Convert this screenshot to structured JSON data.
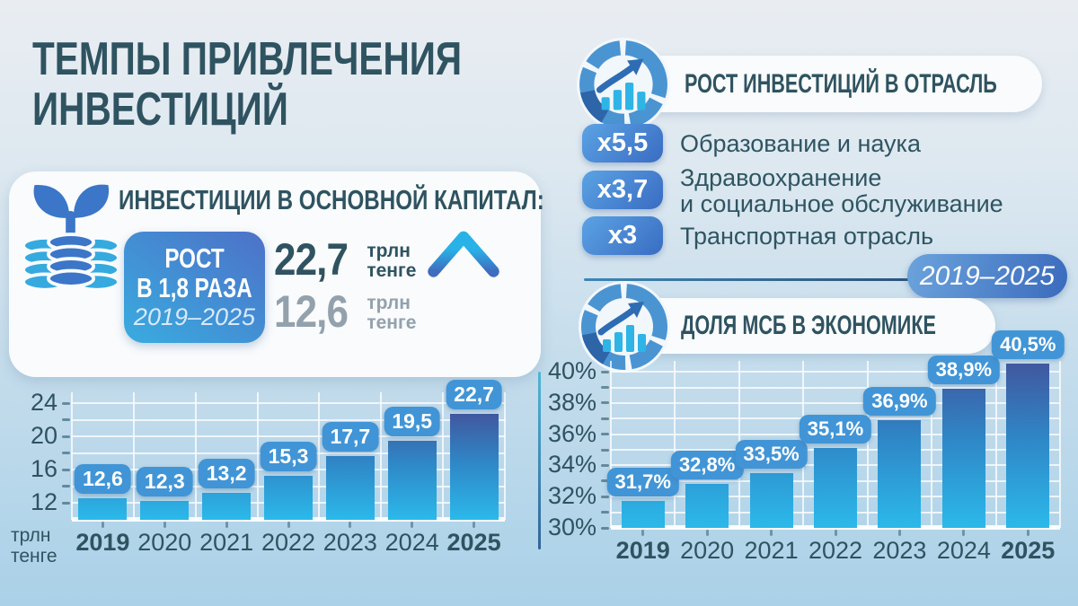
{
  "colors": {
    "background_top": "#e9edf2",
    "background_bottom": "#aad1e8",
    "text_dark_teal": "#2f5360",
    "text_gray": "#93a1ac",
    "card_white": "#f9fbfd",
    "value_badge_blue": "#4195d6",
    "bar_gradient_bottom": "#2bb9ea",
    "bar_gradient_mid": "#2f86c6",
    "bar_gradient_top": "#40589f",
    "growth_box_gradient": [
      "#4c74c9",
      "#3aa9de"
    ],
    "multiplier_badge_gradient": [
      "#5ba3e4",
      "#3a6cc2"
    ],
    "period_pill_gradient": [
      "#6ba3dc",
      "#3b6bbd"
    ],
    "icon_blue": "#3b76c8",
    "icon_cyan": "#35aadf",
    "gridline_white": "rgba(255,255,255,0.75)"
  },
  "page": {
    "title_line1": "ТЕМПЫ ПРИВЛЕЧЕНИЯ",
    "title_line2": "ИНВЕСТИЦИЙ"
  },
  "fixed_capital": {
    "heading": "ИНВЕСТИЦИИ В ОСНОВНОЙ КАПИТАЛ:",
    "growth_box": {
      "line1": "РОСТ",
      "line2": "В 1,8 РАЗА",
      "period": "2019–2025"
    },
    "stat_2025": {
      "value": "22,7",
      "unit": [
        "трлн",
        "тенге"
      ]
    },
    "stat_2019": {
      "value": "12,6",
      "unit": [
        "трлн",
        "тенге"
      ]
    }
  },
  "industry_growth": {
    "heading": "РОСТ ИНВЕСТИЦИЙ В ОТРАСЛЬ",
    "items": [
      {
        "multiplier": "x5,5",
        "label_lines": [
          "Образование и наука"
        ]
      },
      {
        "multiplier": "x3,7",
        "label_lines": [
          "Здравоохранение",
          "и социальное обслуживание"
        ]
      },
      {
        "multiplier": "x3",
        "label_lines": [
          "Транспортная отрасль"
        ]
      }
    ],
    "period": "2019–2025"
  },
  "sme_share": {
    "heading": "ДОЛЯ МСБ В ЭКОНОМИКЕ"
  },
  "chart_data": [
    {
      "id": "fixed-capital-chart",
      "type": "bar",
      "title": "Инвестиции в основной капитал",
      "categories": [
        "2019",
        "2020",
        "2021",
        "2022",
        "2023",
        "2024",
        "2025"
      ],
      "values": [
        12.6,
        12.3,
        13.2,
        15.3,
        17.7,
        19.5,
        22.7
      ],
      "value_labels": [
        "12,6",
        "12,3",
        "13,2",
        "15,3",
        "17,7",
        "19,5",
        "22,7"
      ],
      "xlabel": "",
      "ylabel": "трлн тенге",
      "ylabel_lines": [
        "трлн",
        "тенге"
      ],
      "ylim": [
        10,
        25.3
      ],
      "yticks": [
        12,
        14,
        16,
        18,
        20,
        22,
        24
      ],
      "ytick_labels": {
        "12": "12",
        "16": "16",
        "20": "20",
        "24": "24"
      },
      "grid": true,
      "legend": null,
      "bold_categories": [
        "2019",
        "2025"
      ]
    },
    {
      "id": "sme-share-chart",
      "type": "bar",
      "title": "Доля МСБ в экономике",
      "categories": [
        "2019",
        "2020",
        "2021",
        "2022",
        "2023",
        "2024",
        "2025"
      ],
      "values": [
        31.7,
        32.8,
        33.5,
        35.1,
        36.9,
        38.9,
        40.5
      ],
      "value_labels": [
        "31,7%",
        "32,8%",
        "33,5%",
        "35,1%",
        "36,9%",
        "38,9%",
        "40,5%"
      ],
      "xlabel": "",
      "ylabel": "",
      "ylim": [
        30,
        40.7
      ],
      "yticks": [
        30,
        31,
        32,
        33,
        34,
        35,
        36,
        37,
        38,
        39,
        40
      ],
      "ytick_labels": {
        "30": "30%",
        "32": "32%",
        "34": "34%",
        "36": "36%",
        "38": "38%",
        "40": "40%"
      },
      "grid": true,
      "legend": null,
      "bold_categories": [
        "2019",
        "2025"
      ]
    }
  ]
}
